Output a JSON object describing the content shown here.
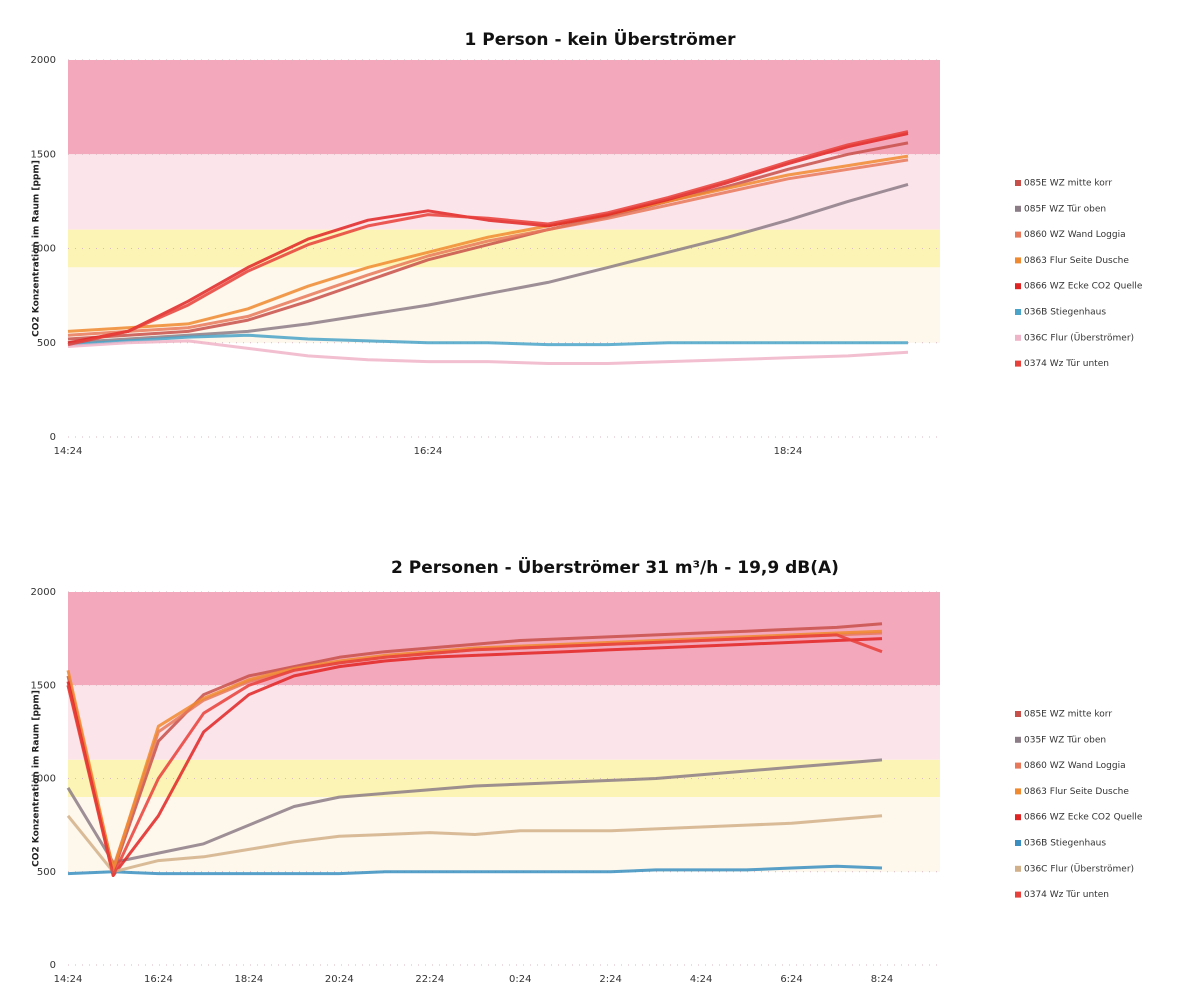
{
  "chart_data": [
    {
      "type": "line",
      "title": "1 Person - kein Überströmer",
      "y_label": "CO2 Konzentration im Raum [ppm]",
      "categories": [
        "14:24",
        null,
        null,
        null,
        null,
        null,
        "16:24",
        null,
        null,
        null,
        null,
        null,
        "18:24",
        null,
        null
      ],
      "ylim": [
        0,
        2000
      ],
      "yticks": [
        0,
        500,
        1000,
        1500,
        2000
      ],
      "grid": true,
      "legend": "right",
      "bands": [
        {
          "from": 1500,
          "to": 2000,
          "color": "#f3a9bb"
        },
        {
          "from": 1100,
          "to": 1500,
          "color": "#fbe4ea"
        },
        {
          "from": 900,
          "to": 1100,
          "color": "#fbf4b4"
        },
        {
          "from": 500,
          "to": 900,
          "color": "#fdf7ec"
        }
      ],
      "series": [
        {
          "name": "085E WZ mitte korr",
          "color": "#c8504a",
          "values": [
            520,
            540,
            560,
            620,
            720,
            830,
            940,
            1020,
            1100,
            1170,
            1250,
            1330,
            1420,
            1500,
            1560
          ]
        },
        {
          "name": "085F WZ Tür oben",
          "color": "#8c7c86",
          "values": [
            500,
            520,
            540,
            560,
            600,
            650,
            700,
            760,
            820,
            900,
            980,
            1060,
            1150,
            1250,
            1340
          ]
        },
        {
          "name": "0860 WZ Wand Loggia",
          "color": "#e8785a",
          "values": [
            540,
            560,
            580,
            640,
            750,
            860,
            960,
            1040,
            1100,
            1160,
            1230,
            1300,
            1370,
            1420,
            1470
          ]
        },
        {
          "name": "0863 Flur Seite Dusche",
          "color": "#f08a30",
          "values": [
            560,
            580,
            600,
            680,
            800,
            900,
            980,
            1060,
            1120,
            1180,
            1250,
            1320,
            1390,
            1440,
            1490
          ]
        },
        {
          "name": "0866 WZ Ecke CO2 Quelle",
          "color": "#e02424",
          "values": [
            500,
            560,
            720,
            900,
            1050,
            1150,
            1200,
            1150,
            1120,
            1180,
            1260,
            1350,
            1450,
            1540,
            1610
          ]
        },
        {
          "name": "036B Stiegenhaus",
          "color": "#4aa3c8",
          "values": [
            490,
            510,
            530,
            540,
            520,
            510,
            500,
            500,
            490,
            490,
            500,
            500,
            500,
            500,
            500
          ]
        },
        {
          "name": "036C Flur (Überströmer)",
          "color": "#f0b4c8",
          "values": [
            480,
            500,
            510,
            470,
            430,
            410,
            400,
            400,
            390,
            390,
            400,
            410,
            420,
            430,
            450
          ]
        },
        {
          "name": "0374 Wz Tür unten",
          "color": "#e8403a",
          "values": [
            490,
            560,
            700,
            880,
            1020,
            1120,
            1180,
            1160,
            1130,
            1190,
            1270,
            1360,
            1460,
            1550,
            1620
          ]
        }
      ]
    },
    {
      "type": "line",
      "title": "2 Personen - Überströmer  31 m³/h - 19,9 dB(A)",
      "y_label": "CO2 Konzentration im Raum [ppm]",
      "categories": [
        "14:24",
        null,
        "16:24",
        null,
        "18:24",
        null,
        "20:24",
        null,
        "22:24",
        null,
        "0:24",
        null,
        "2:24",
        null,
        "4:24",
        null,
        "6:24",
        null,
        "8:24"
      ],
      "ylim": [
        0,
        2000
      ],
      "yticks": [
        0,
        500,
        1000,
        1500,
        2000
      ],
      "grid": true,
      "legend": "right",
      "bands": [
        {
          "from": 1500,
          "to": 2000,
          "color": "#f3a9bb"
        },
        {
          "from": 1100,
          "to": 1500,
          "color": "#fbe4ea"
        },
        {
          "from": 900,
          "to": 1100,
          "color": "#fbf4b4"
        },
        {
          "from": 500,
          "to": 900,
          "color": "#fdf7ec"
        }
      ],
      "series": [
        {
          "name": "085E WZ mitte korr",
          "color": "#c8504a",
          "values": [
            1550,
            500,
            1200,
            1450,
            1550,
            1600,
            1650,
            1680,
            1700,
            1720,
            1740,
            1750,
            1760,
            1770,
            1780,
            1790,
            1800,
            1810,
            1830
          ]
        },
        {
          "name": "035F WZ Tür oben",
          "color": "#8c7c86",
          "values": [
            950,
            550,
            600,
            650,
            750,
            850,
            900,
            920,
            940,
            960,
            970,
            980,
            990,
            1000,
            1020,
            1040,
            1060,
            1080,
            1100
          ]
        },
        {
          "name": "0860 WZ Wand Loggia",
          "color": "#e8785a",
          "values": [
            1500,
            520,
            1250,
            1420,
            1520,
            1580,
            1620,
            1650,
            1670,
            1690,
            1700,
            1710,
            1720,
            1730,
            1740,
            1750,
            1760,
            1770,
            1780
          ]
        },
        {
          "name": "0863 Flur Seite Dusche",
          "color": "#f08a30",
          "values": [
            1580,
            510,
            1280,
            1430,
            1530,
            1590,
            1630,
            1660,
            1680,
            1700,
            1710,
            1720,
            1730,
            1740,
            1750,
            1760,
            1770,
            1780,
            1790
          ]
        },
        {
          "name": "0866 WZ Ecke CO2 Quelle",
          "color": "#e02424",
          "values": [
            1520,
            480,
            800,
            1250,
            1450,
            1550,
            1600,
            1630,
            1650,
            1660,
            1670,
            1680,
            1690,
            1700,
            1710,
            1720,
            1730,
            1740,
            1750
          ]
        },
        {
          "name": "036B Stiegenhaus",
          "color": "#3a8fc0",
          "values": [
            490,
            500,
            490,
            490,
            490,
            490,
            490,
            500,
            500,
            500,
            500,
            500,
            500,
            510,
            510,
            510,
            520,
            530,
            520
          ]
        },
        {
          "name": "036C Flur (Überströmer)",
          "color": "#d2b08a",
          "values": [
            800,
            500,
            560,
            580,
            620,
            660,
            690,
            700,
            710,
            700,
            720,
            720,
            720,
            730,
            740,
            750,
            760,
            780,
            800
          ]
        },
        {
          "name": "0374 Wz Tür unten",
          "color": "#e8403a",
          "values": [
            1500,
            480,
            1000,
            1350,
            1500,
            1580,
            1620,
            1650,
            1670,
            1690,
            1700,
            1710,
            1720,
            1730,
            1740,
            1750,
            1760,
            1770,
            1680
          ]
        }
      ]
    }
  ]
}
